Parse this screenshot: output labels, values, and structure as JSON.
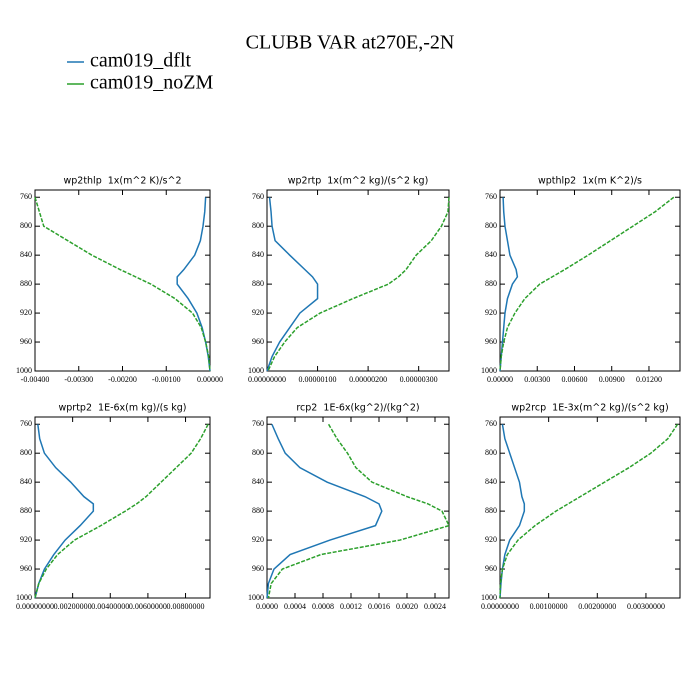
{
  "title": "CLUBB VAR at270E,-2N",
  "legend": [
    {
      "name": "cam019_dflt",
      "color": "#1f77b4"
    },
    {
      "name": "cam019_noZM",
      "color": "#2ca02c"
    }
  ],
  "chart_data": [
    {
      "type": "line",
      "title": "wp2thlp  1x(m^2 K)/s^2",
      "y": [
        760,
        780,
        800,
        820,
        840,
        860,
        870,
        880,
        900,
        920,
        940,
        960,
        980,
        1000
      ],
      "ylim": [
        1000,
        750
      ],
      "yticks": [
        760,
        800,
        840,
        880,
        920,
        960,
        1000
      ],
      "xlim": [
        -0.004,
        0
      ],
      "xticks": [
        {
          "value": -0.004,
          "label": "-0.00400"
        },
        {
          "value": -0.003,
          "label": "-0.00300"
        },
        {
          "value": -0.002,
          "label": "-0.00200"
        },
        {
          "value": -0.001,
          "label": "-0.00100"
        },
        {
          "value": 0,
          "label": "0.00000"
        }
      ],
      "series": [
        {
          "values": [
            -0.0001,
            -0.00012,
            -0.00016,
            -0.00022,
            -0.00035,
            -0.0006,
            -0.00075,
            -0.00075,
            -0.0005,
            -0.0003,
            -0.00018,
            -0.0001,
            -4e-05,
            0
          ]
        },
        {
          "values": [
            -0.004,
            -0.0039,
            -0.0038,
            -0.00325,
            -0.0027,
            -0.00205,
            -0.0017,
            -0.00135,
            -0.0008,
            -0.0004,
            -0.0002,
            -0.0001,
            -3e-05,
            0
          ]
        }
      ]
    },
    {
      "type": "line",
      "title": "wp2rtp  1x(m^2 kg)/(s^2 kg)",
      "y": [
        760,
        780,
        800,
        820,
        840,
        860,
        870,
        880,
        900,
        920,
        940,
        960,
        980,
        1000
      ],
      "ylim": [
        1000,
        750
      ],
      "yticks": [
        760,
        800,
        840,
        880,
        920,
        960,
        1000
      ],
      "xlim": [
        0,
        3.6e-06
      ],
      "xticks": [
        {
          "value": 0,
          "label": "0.00000000"
        },
        {
          "value": 1e-06,
          "label": "0.00000100"
        },
        {
          "value": 2e-06,
          "label": "0.00000200"
        },
        {
          "value": 3e-06,
          "label": "0.00000300"
        }
      ],
      "series": [
        {
          "values": [
            5e-08,
            8e-08,
            1e-07,
            1.6e-07,
            4.5e-07,
            7.5e-07,
            9e-07,
            1e-06,
            1e-06,
            6.5e-07,
            4.5e-07,
            2.5e-07,
            1e-07,
            0
          ]
        },
        {
          "values": [
            3.6e-06,
            3.58e-06,
            3.45e-06,
            3.25e-06,
            2.95e-06,
            2.75e-06,
            2.6e-06,
            2.4e-06,
            1.7e-06,
            1.05e-06,
            6e-07,
            3.5e-07,
            1.5e-07,
            2e-08
          ]
        }
      ]
    },
    {
      "type": "line",
      "title": "wpthlp2  1x(m K^2)/s",
      "y": [
        760,
        780,
        800,
        820,
        840,
        860,
        870,
        880,
        900,
        920,
        940,
        960,
        980,
        1000
      ],
      "ylim": [
        1000,
        750
      ],
      "yticks": [
        760,
        800,
        840,
        880,
        920,
        960,
        1000
      ],
      "xlim": [
        0,
        0.0145
      ],
      "xticks": [
        {
          "value": 0,
          "label": "0.00000"
        },
        {
          "value": 0.003,
          "label": "0.00300"
        },
        {
          "value": 0.006,
          "label": "0.00600"
        },
        {
          "value": 0.009,
          "label": "0.00900"
        },
        {
          "value": 0.012,
          "label": "0.01200"
        }
      ],
      "series": [
        {
          "values": [
            0.00025,
            0.0003,
            0.0004,
            0.0006,
            0.0008,
            0.0013,
            0.0014,
            0.001,
            0.0006,
            0.0004,
            0.0003,
            0.0002,
            0.0001,
            0
          ]
        },
        {
          "values": [
            0.014,
            0.0125,
            0.0107,
            0.0089,
            0.0071,
            0.0052,
            0.0042,
            0.0032,
            0.002,
            0.0012,
            0.0006,
            0.0003,
            0.0001,
            0
          ]
        }
      ]
    },
    {
      "type": "line",
      "title": "wprtp2  1E-6x(m kg)/(s kg)",
      "y": [
        760,
        780,
        800,
        820,
        840,
        860,
        870,
        880,
        900,
        920,
        940,
        960,
        980,
        1000
      ],
      "ylim": [
        1000,
        750
      ],
      "yticks": [
        760,
        800,
        840,
        880,
        920,
        960,
        1000
      ],
      "xlim": [
        0,
        0.0093
      ],
      "xticks": [
        {
          "value": 0,
          "label": "0.00000000"
        },
        {
          "value": 0.002,
          "label": "0.00200000"
        },
        {
          "value": 0.004,
          "label": "0.00400000"
        },
        {
          "value": 0.006,
          "label": "0.00600000"
        },
        {
          "value": 0.008,
          "label": "0.00800000"
        }
      ],
      "series": [
        {
          "values": [
            0.00015,
            0.00025,
            0.0005,
            0.0011,
            0.0019,
            0.0026,
            0.0031,
            0.0031,
            0.0024,
            0.0016,
            0.001,
            0.0005,
            0.0002,
            0
          ]
        },
        {
          "values": [
            0.0092,
            0.0088,
            0.0083,
            0.0075,
            0.0067,
            0.0059,
            0.0054,
            0.0048,
            0.0035,
            0.0021,
            0.0012,
            0.0006,
            0.0002,
            0
          ]
        }
      ]
    },
    {
      "type": "line",
      "title": "rcp2  1E-6x(kg^2)/(kg^2)",
      "y": [
        760,
        780,
        800,
        820,
        840,
        860,
        870,
        880,
        900,
        920,
        940,
        960,
        980,
        1000
      ],
      "ylim": [
        1000,
        750
      ],
      "yticks": [
        760,
        800,
        840,
        880,
        920,
        960,
        1000
      ],
      "xlim": [
        0,
        0.0026
      ],
      "xticks": [
        {
          "value": 0,
          "label": "0.0000"
        },
        {
          "value": 0.0004,
          "label": "0.0004"
        },
        {
          "value": 0.0008,
          "label": "0.0008"
        },
        {
          "value": 0.0012,
          "label": "0.0012"
        },
        {
          "value": 0.0016,
          "label": "0.0016"
        },
        {
          "value": 0.002,
          "label": "0.0020"
        },
        {
          "value": 0.0024,
          "label": "0.0024"
        }
      ],
      "series": [
        {
          "values": [
            7e-05,
            0.00016,
            0.00026,
            0.00047,
            0.00086,
            0.0014,
            0.0016,
            0.00164,
            0.00155,
            0.0009,
            0.00033,
            0.0001,
            2e-05,
            0
          ]
        },
        {
          "values": [
            0.00088,
            0.001,
            0.00115,
            0.00127,
            0.0015,
            0.002,
            0.0023,
            0.0025,
            0.0026,
            0.0019,
            0.00077,
            0.00022,
            6e-05,
            2e-05
          ]
        }
      ]
    },
    {
      "type": "line",
      "title": "wp2rcp  1E-3x(m^2 kg)/(s^2 kg)",
      "y": [
        760,
        780,
        800,
        820,
        840,
        860,
        870,
        880,
        900,
        920,
        940,
        960,
        980,
        1000
      ],
      "ylim": [
        1000,
        750
      ],
      "yticks": [
        760,
        800,
        840,
        880,
        920,
        960,
        1000
      ],
      "xlim": [
        0,
        0.0037
      ],
      "xticks": [
        {
          "value": 0,
          "label": "0.00000000"
        },
        {
          "value": 0.001,
          "label": "0.00100000"
        },
        {
          "value": 0.002,
          "label": "0.00200000"
        },
        {
          "value": 0.003,
          "label": "0.00300000"
        }
      ],
      "series": [
        {
          "values": [
            5e-05,
            0.0001,
            0.0002,
            0.0003,
            0.0004,
            0.00045,
            0.0005,
            0.0005,
            0.0004,
            0.0002,
            0.0001,
            5e-05,
            2e-05,
            0
          ]
        },
        {
          "values": [
            0.00365,
            0.00345,
            0.0031,
            0.00265,
            0.00215,
            0.00165,
            0.0014,
            0.00115,
            0.00072,
            0.00037,
            0.00015,
            5e-05,
            1e-05,
            0
          ]
        }
      ]
    }
  ]
}
